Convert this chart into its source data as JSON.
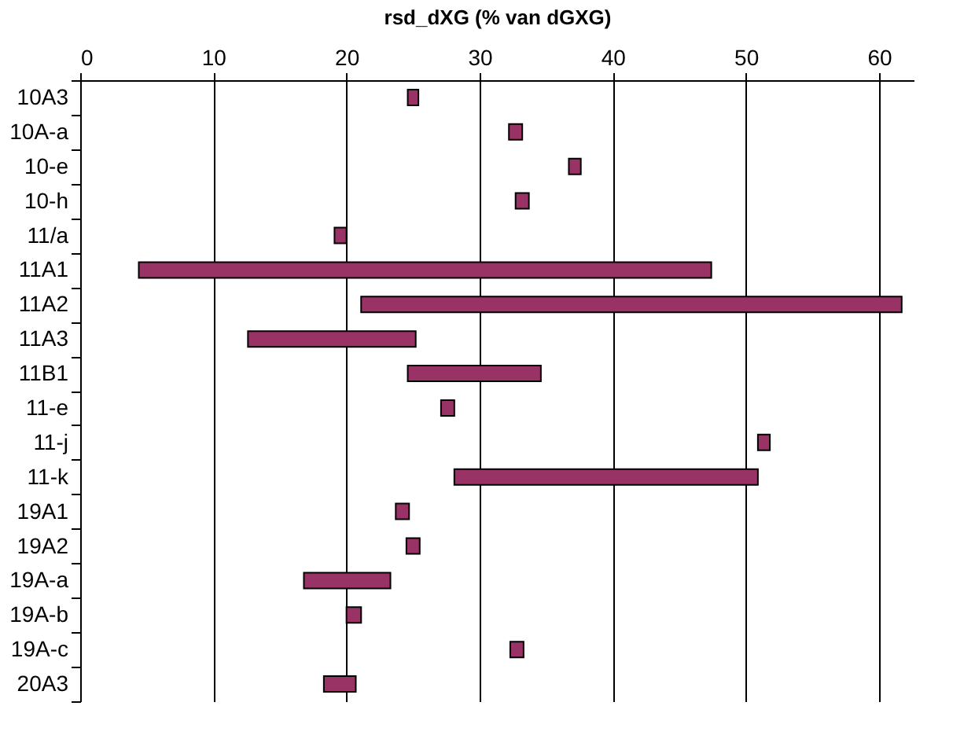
{
  "chart_data": {
    "type": "bar",
    "orientation": "horizontal",
    "xlabel": "rsd_dXG (% van dGXG)",
    "categories": [
      "10A3",
      "10A-a",
      "10-e",
      "10-h",
      "11/a",
      "11A1",
      "11A2",
      "11A3",
      "11B1",
      "11-e",
      "11-j",
      "11-k",
      "19A1",
      "19A2",
      "19A-a",
      "19A-b",
      "19A-c",
      "20A3"
    ],
    "base": [
      24.6,
      32.2,
      36.7,
      32.7,
      19.1,
      4.4,
      21.1,
      12.6,
      24.6,
      27.1,
      50.9,
      28.1,
      23.7,
      24.5,
      16.8,
      20.0,
      32.3,
      18.3
    ],
    "values": [
      0.8,
      1.0,
      0.9,
      1.0,
      0.9,
      43.0,
      40.6,
      12.6,
      10.0,
      1.0,
      0.9,
      22.8,
      1.0,
      1.0,
      6.5,
      1.1,
      1.0,
      2.4
    ],
    "color": "#993366",
    "xlim": [
      0,
      62.6
    ],
    "xticks": [
      0,
      10,
      20,
      30,
      40,
      50,
      60
    ],
    "grid": "x"
  }
}
